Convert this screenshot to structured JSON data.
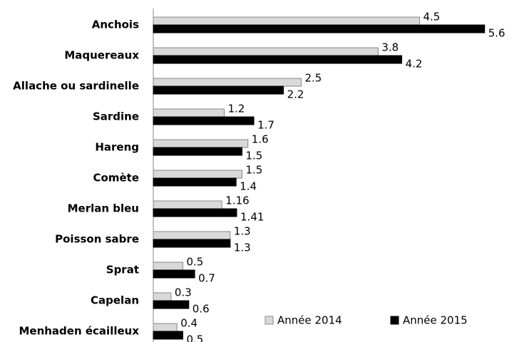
{
  "chart_data": {
    "type": "hbar",
    "categories": [
      "Anchois",
      "Maquereaux",
      "Allache ou sardinelle",
      "Sardine",
      "Hareng",
      "Comète",
      "Merlan bleu",
      "Poisson sabre",
      "Sprat",
      "Capelan",
      "Menhaden écailleux"
    ],
    "series": [
      {
        "name": "Année 2014",
        "color": "#d9d9d9",
        "values": [
          4.5,
          3.8,
          2.5,
          1.2,
          1.6,
          1.5,
          1.16,
          1.3,
          0.5,
          0.3,
          0.4
        ]
      },
      {
        "name": "Année 2015",
        "color": "#000000",
        "values": [
          5.6,
          4.2,
          2.2,
          1.7,
          1.5,
          1.4,
          1.41,
          1.3,
          0.7,
          0.6,
          0.5
        ]
      }
    ],
    "xlim": [
      0,
      6.35
    ],
    "legend": "lower right"
  }
}
